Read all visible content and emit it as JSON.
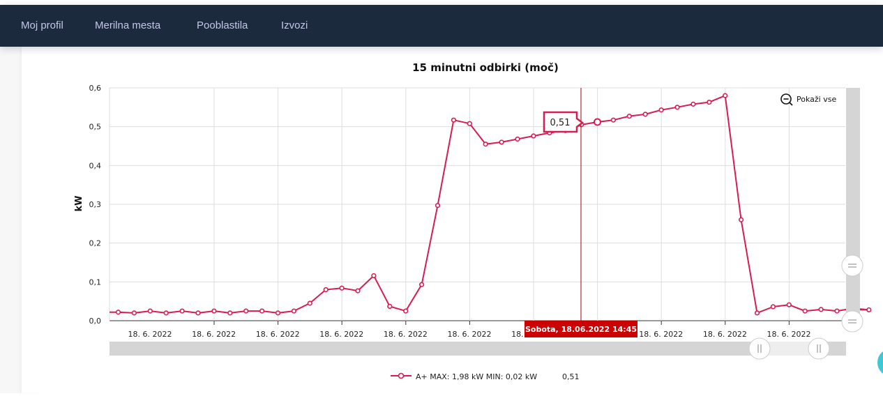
{
  "nav": {
    "items": [
      "Moj profil",
      "Merilna mesta",
      "Pooblastila",
      "Izvozi"
    ]
  },
  "colors": {
    "topbar": "#1c2a3e",
    "nav_text": "#c3c8e6",
    "series": "#d81b50",
    "crosshair": "#a00000",
    "tooltip_x_bg": "#cc0000"
  },
  "chart_data": {
    "type": "line",
    "title": "15 minutni odbirki (moč)",
    "ylabel": "kW",
    "ylim": [
      0,
      0.6
    ],
    "y_ticks": [
      "0,0",
      "0,1",
      "0,2",
      "0,3",
      "0,4",
      "0,5",
      "0,6"
    ],
    "x_tick_labels": [
      "18. 6. 2022",
      "18. 6. 2022",
      "18. 6. 2022",
      "18. 6. 2022",
      "18. 6. 2022",
      "18. 6. 2022",
      "18. 6. 2022",
      "18. 6. 2022",
      "18. 6. 2022",
      "18. 6. 2022",
      "18. 6. 2022"
    ],
    "grid": true,
    "series": [
      {
        "name": "A+",
        "values": [
          0.022,
          0.02,
          0.025,
          0.02,
          0.025,
          0.02,
          0.025,
          0.02,
          0.025,
          0.025,
          0.02,
          0.025,
          0.045,
          0.08,
          0.084,
          0.077,
          0.116,
          0.037,
          0.025,
          0.093,
          0.297,
          0.517,
          0.508,
          0.455,
          0.46,
          0.468,
          0.476,
          0.484,
          0.49,
          0.505,
          0.512,
          0.517,
          0.527,
          0.532,
          0.543,
          0.55,
          0.558,
          0.563,
          0.58,
          0.26,
          0.02,
          0.036,
          0.041,
          0.025,
          0.029,
          0.025,
          0.032,
          0.028
        ]
      }
    ],
    "legend": {
      "label": "A+ MAX: 1,98 kW MIN: 0,02 kW",
      "value": "0,51",
      "placement": "bottom-center"
    },
    "tooltip_value": "0,51",
    "tooltip_index": 30,
    "crosshair_label": "Sobota, 18.06.2022 14:45",
    "reset_zoom_label": "Pokaži vse"
  }
}
